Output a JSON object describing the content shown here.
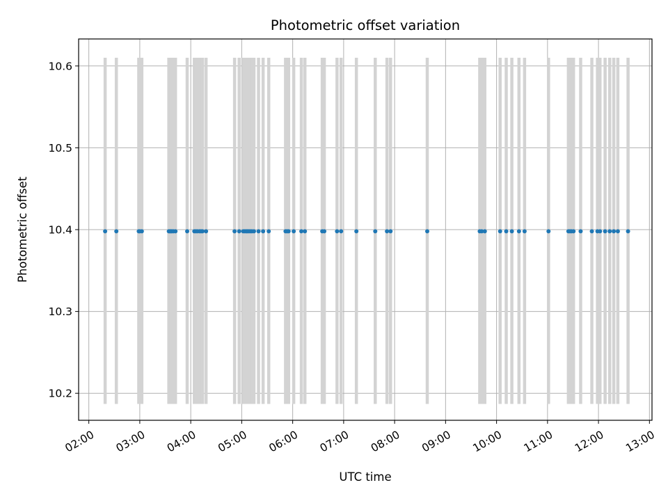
{
  "chart_data": {
    "type": "scatter",
    "title": "Photometric offset variation",
    "xlabel": "UTC time",
    "ylabel": "Photometric offset",
    "x_unit": "hour of day (UTC)",
    "xlim": [
      1.8,
      13.05
    ],
    "ylim": [
      10.167,
      10.633
    ],
    "x_ticks": [
      2,
      3,
      4,
      5,
      6,
      7,
      8,
      9,
      10,
      11,
      12,
      13
    ],
    "x_tick_labels": [
      "02:00",
      "03:00",
      "04:00",
      "05:00",
      "06:00",
      "07:00",
      "08:00",
      "09:00",
      "10:00",
      "11:00",
      "12:00",
      "13:00"
    ],
    "y_ticks": [
      10.2,
      10.3,
      10.4,
      10.5,
      10.6
    ],
    "y_tick_labels": [
      "10.2",
      "10.3",
      "10.4",
      "10.5",
      "10.6"
    ],
    "grid": true,
    "colors": {
      "points": "#1f77b4",
      "bands": "#d3d3d3",
      "grid": "#b0b0b0"
    },
    "bands": {
      "y_range": [
        10.187,
        10.61
      ],
      "x": [
        2.32,
        2.54,
        2.98,
        3.0,
        3.04,
        3.57,
        3.59,
        3.61,
        3.63,
        3.66,
        3.7,
        3.93,
        4.07,
        4.1,
        4.13,
        4.17,
        4.2,
        4.23,
        4.3,
        4.86,
        4.95,
        5.03,
        5.06,
        5.09,
        5.11,
        5.14,
        5.17,
        5.2,
        5.24,
        5.33,
        5.42,
        5.53,
        5.86,
        5.89,
        5.92,
        6.02,
        6.17,
        6.24,
        6.58,
        6.62,
        6.87,
        6.95,
        7.25,
        7.62,
        7.85,
        7.92,
        8.64,
        9.67,
        9.71,
        9.77,
        10.07,
        10.19,
        10.3,
        10.44,
        10.55,
        11.02,
        11.41,
        11.44,
        11.47,
        11.51,
        11.65,
        11.87,
        11.98,
        12.03,
        12.13,
        12.22,
        12.3,
        12.38,
        12.58
      ]
    },
    "series": [
      {
        "marker": "dot",
        "x": [
          2.32,
          2.54,
          2.98,
          3.0,
          3.04,
          3.57,
          3.59,
          3.61,
          3.63,
          3.66,
          3.7,
          3.93,
          4.07,
          4.1,
          4.13,
          4.17,
          4.2,
          4.23,
          4.3,
          4.86,
          4.95,
          5.03,
          5.06,
          5.09,
          5.11,
          5.14,
          5.17,
          5.2,
          5.24,
          5.33,
          5.42,
          5.53,
          5.86,
          5.89,
          5.92,
          6.02,
          6.17,
          6.24,
          6.58,
          6.62,
          6.87,
          6.95,
          7.25,
          7.62,
          7.85,
          7.92,
          8.64,
          9.67,
          9.71,
          9.77,
          10.07,
          10.19,
          10.3,
          10.44,
          10.55,
          11.02,
          11.41,
          11.44,
          11.47,
          11.51,
          11.65,
          11.87,
          11.98,
          12.03,
          12.13,
          12.22,
          12.3,
          12.38,
          12.58
        ],
        "y": 10.398
      }
    ]
  }
}
